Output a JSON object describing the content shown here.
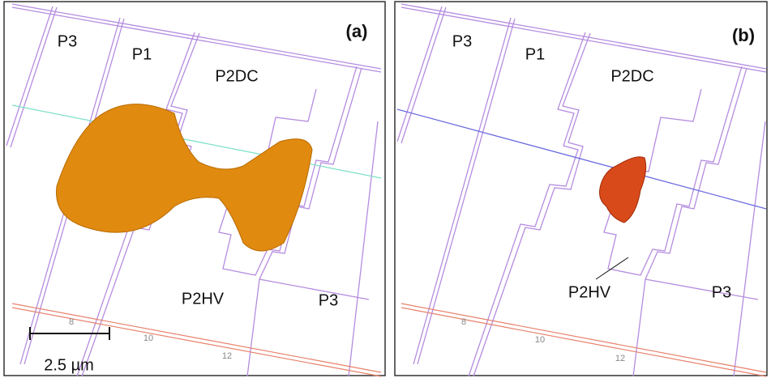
{
  "panels": [
    {
      "label": "(a)",
      "regions": [
        "P3",
        "P1",
        "P2DC",
        "P2HV",
        "P3"
      ],
      "axis_ticks": [
        8,
        10,
        12
      ],
      "scale_bar": "2.5 µm"
    },
    {
      "label": "(b)",
      "regions": [
        "P3",
        "P1",
        "P2DC",
        "P2HV",
        "P3"
      ],
      "axis_ticks": [
        8,
        10,
        12
      ]
    }
  ]
}
